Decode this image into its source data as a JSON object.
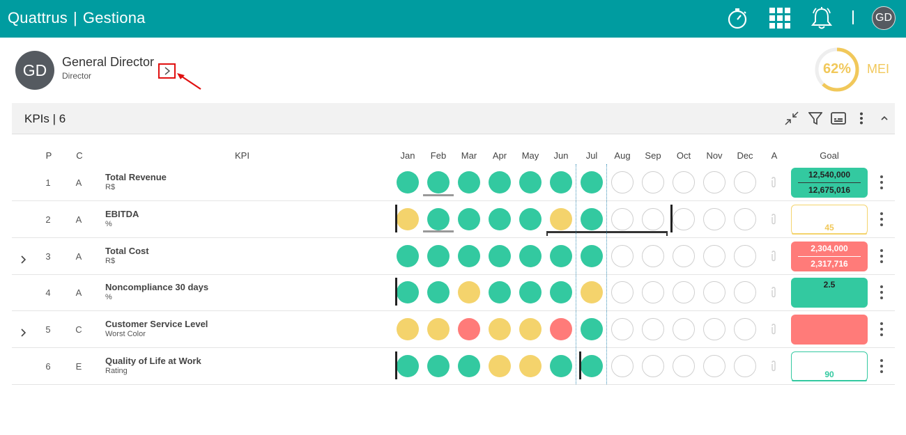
{
  "app": {
    "brand_left": "Quattrus",
    "brand_sep": "|",
    "brand_right": "Gestiona",
    "user_initials": "GD"
  },
  "top_icons": [
    "stopwatch-icon",
    "apps-grid-icon",
    "bell-icon"
  ],
  "header": {
    "initials": "GD",
    "name": "General Director",
    "role": "Director",
    "mei_percent": "62%",
    "mei_value": 0.62,
    "mei_label": "MEI",
    "mei_color": "#f1c85a"
  },
  "panel": {
    "title": "KPIs | 6"
  },
  "columns": {
    "p": "P",
    "c": "C",
    "kpi": "KPI",
    "months": [
      "Jan",
      "Feb",
      "Mar",
      "Apr",
      "May",
      "Jun",
      "Jul",
      "Aug",
      "Sep",
      "Oct",
      "Nov",
      "Dec"
    ],
    "a": "A",
    "goal": "Goal"
  },
  "colors": {
    "green": "#33c9a0",
    "yellow": "#f4d36c",
    "red": "#ff7b79",
    "brand": "#009ca0"
  },
  "rows": [
    {
      "p": "1",
      "c": "A",
      "name": "Total Revenue",
      "unit": "R$",
      "status": [
        "g",
        "g",
        "g",
        "g",
        "g",
        "g",
        "g",
        "e",
        "e",
        "e",
        "e",
        "e"
      ],
      "goal_top": "12,540,000",
      "goal_bottom": "12,675,016",
      "goal_style": "green-split",
      "expandable": false
    },
    {
      "p": "2",
      "c": "A",
      "name": "EBITDA",
      "unit": "%",
      "status": [
        "y",
        "g",
        "g",
        "g",
        "g",
        "y",
        "g",
        "e",
        "e",
        "e",
        "e",
        "e"
      ],
      "goal_value": "45",
      "goal_style": "yellow-outline",
      "expandable": false
    },
    {
      "p": "3",
      "c": "A",
      "name": "Total Cost",
      "unit": "R$",
      "status": [
        "g",
        "g",
        "g",
        "g",
        "g",
        "g",
        "g",
        "e",
        "e",
        "e",
        "e",
        "e"
      ],
      "goal_top": "2,304,000",
      "goal_bottom": "2,317,716",
      "goal_style": "red-split",
      "expandable": true
    },
    {
      "p": "4",
      "c": "A",
      "name": "Noncompliance 30 days",
      "unit": "%",
      "status": [
        "g",
        "g",
        "y",
        "g",
        "g",
        "g",
        "y",
        "e",
        "e",
        "e",
        "e",
        "e"
      ],
      "goal_value": "2.5",
      "goal_style": "green-top",
      "expandable": false
    },
    {
      "p": "5",
      "c": "C",
      "name": "Customer Service Level",
      "unit": "Worst Color",
      "status": [
        "y",
        "y",
        "r",
        "y",
        "y",
        "r",
        "g",
        "e",
        "e",
        "e",
        "e",
        "e"
      ],
      "goal_value": "",
      "goal_style": "red-empty",
      "expandable": true
    },
    {
      "p": "6",
      "c": "E",
      "name": "Quality of Life at Work",
      "unit": "Rating",
      "status": [
        "g",
        "g",
        "g",
        "y",
        "y",
        "g",
        "g",
        "e",
        "e",
        "e",
        "e",
        "e"
      ],
      "goal_value": "90",
      "goal_style": "green-outline",
      "expandable": false
    }
  ]
}
